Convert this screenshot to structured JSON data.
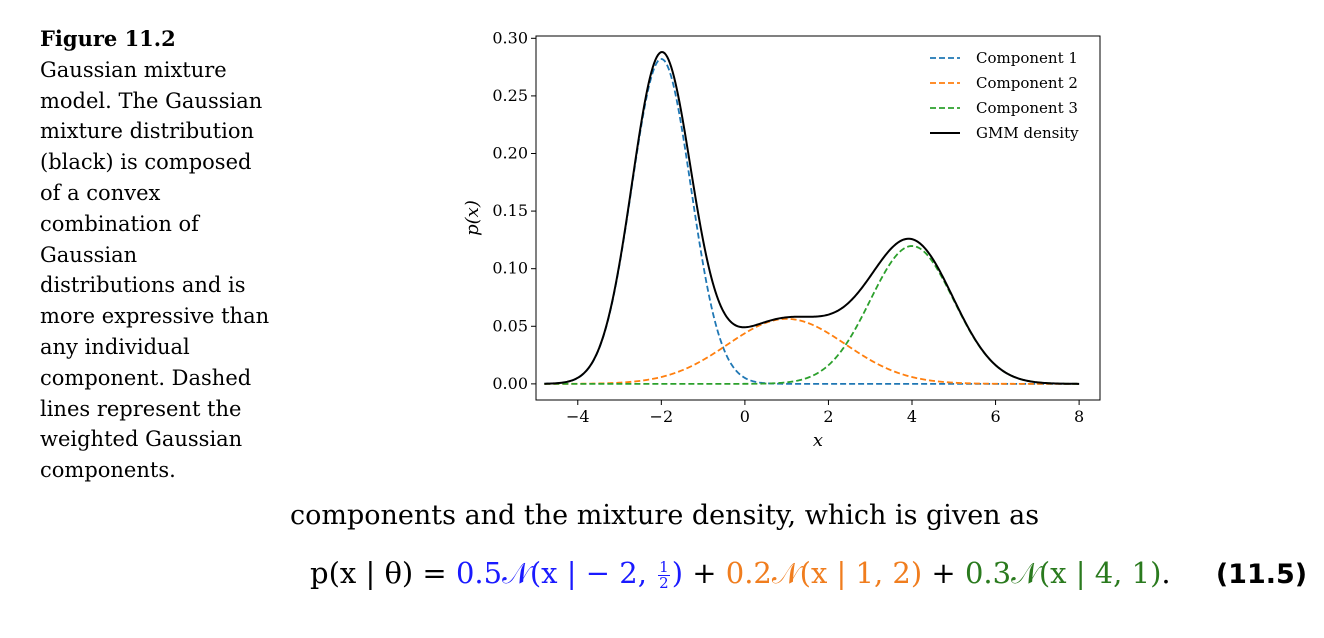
{
  "caption": {
    "label": "Figure 11.2",
    "text": "Gaussian mixture model. The Gaussian mixture distribution (black) is composed of a convex combination of Gaussian distributions and is more expressive than any individual component. Dashed lines represent the weighted Gaussian components."
  },
  "chart_data": {
    "type": "line",
    "xlabel": "x",
    "ylabel": "p(x)",
    "xlim": [
      -5,
      8.5
    ],
    "ylim": [
      -0.014,
      0.302
    ],
    "xticks": [
      -4,
      -2,
      0,
      2,
      4,
      6,
      8
    ],
    "xtick_labels": [
      "−4",
      "−2",
      "0",
      "2",
      "4",
      "6",
      "8"
    ],
    "yticks": [
      0.0,
      0.05,
      0.1,
      0.15,
      0.2,
      0.25,
      0.3
    ],
    "ytick_labels": [
      "0.00",
      "0.05",
      "0.10",
      "0.15",
      "0.20",
      "0.25",
      "0.30"
    ],
    "x_range": [
      -4.8,
      8.0
    ],
    "grid": false,
    "legend_position": "top-right",
    "series": [
      {
        "name": "Component 1",
        "weight": 0.5,
        "mean": -2,
        "variance": 0.5,
        "style": "dashed",
        "color": "#1f77b4"
      },
      {
        "name": "Component 2",
        "weight": 0.2,
        "mean": 1,
        "variance": 2,
        "style": "dashed",
        "color": "#ff7f0e"
      },
      {
        "name": "Component 3",
        "weight": 0.3,
        "mean": 4,
        "variance": 1,
        "style": "dashed",
        "color": "#2ca02c"
      },
      {
        "name": "GMM density",
        "style": "solid",
        "color": "#000000"
      }
    ]
  },
  "body_text": "components and the mixture density, which is given as",
  "equation": {
    "lhs": "p(x | θ) =",
    "term1_coef": "0.5𝒩",
    "term1_args": "(x | − 2,",
    "term1_frac_num": "1",
    "term1_frac_den": "2",
    "term1_close": ")",
    "plus": "+",
    "term2": "0.2𝒩(x | 1, 2)",
    "term3": "0.3𝒩(x | 4, 1)",
    "period": ".",
    "number": "(11.5)",
    "colors": {
      "term1": "#1a1aff",
      "term2": "#f07d1e",
      "term3": "#2a7a1e"
    }
  }
}
